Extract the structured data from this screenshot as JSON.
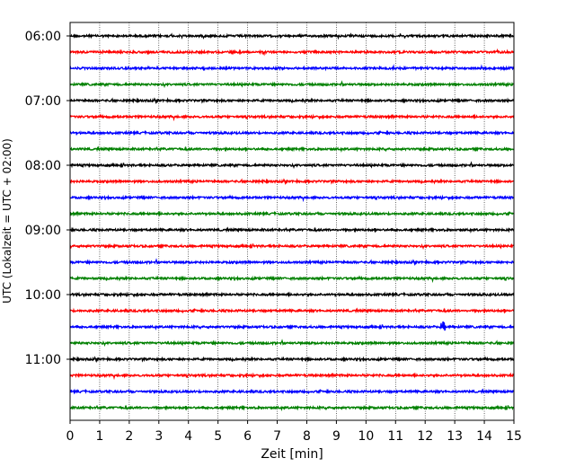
{
  "chart_data": {
    "type": "line",
    "title": "",
    "xlabel": "Zeit  [min]",
    "ylabel": "UTC (Lokalzeit = UTC + 02:00)",
    "xlim": [
      0,
      15
    ],
    "x_ticks": [
      "0",
      "1",
      "2",
      "3",
      "4",
      "5",
      "6",
      "7",
      "8",
      "9",
      "10",
      "11",
      "12",
      "13",
      "14",
      "15"
    ],
    "y_ticks": [
      "06:00",
      "07:00",
      "08:00",
      "09:00",
      "10:00",
      "11:00"
    ],
    "grid": "vertical dotted",
    "colors": [
      "#000000",
      "#ff0000",
      "#0000ff",
      "#008000"
    ],
    "traces": [
      {
        "start": "06:00",
        "color": "#000000"
      },
      {
        "start": "06:15",
        "color": "#ff0000"
      },
      {
        "start": "06:30",
        "color": "#0000ff"
      },
      {
        "start": "06:45",
        "color": "#008000"
      },
      {
        "start": "07:00",
        "color": "#000000"
      },
      {
        "start": "07:15",
        "color": "#ff0000"
      },
      {
        "start": "07:30",
        "color": "#0000ff"
      },
      {
        "start": "07:45",
        "color": "#008000"
      },
      {
        "start": "08:00",
        "color": "#000000"
      },
      {
        "start": "08:15",
        "color": "#ff0000"
      },
      {
        "start": "08:30",
        "color": "#0000ff"
      },
      {
        "start": "08:45",
        "color": "#008000"
      },
      {
        "start": "09:00",
        "color": "#000000"
      },
      {
        "start": "09:15",
        "color": "#ff0000"
      },
      {
        "start": "09:30",
        "color": "#0000ff"
      },
      {
        "start": "09:45",
        "color": "#008000"
      },
      {
        "start": "10:00",
        "color": "#000000"
      },
      {
        "start": "10:15",
        "color": "#ff0000"
      },
      {
        "start": "10:30",
        "color": "#0000ff",
        "event_min": 12.6
      },
      {
        "start": "10:45",
        "color": "#008000"
      },
      {
        "start": "11:00",
        "color": "#000000"
      },
      {
        "start": "11:15",
        "color": "#ff0000"
      },
      {
        "start": "11:30",
        "color": "#0000ff"
      },
      {
        "start": "11:45",
        "color": "#008000"
      }
    ]
  }
}
